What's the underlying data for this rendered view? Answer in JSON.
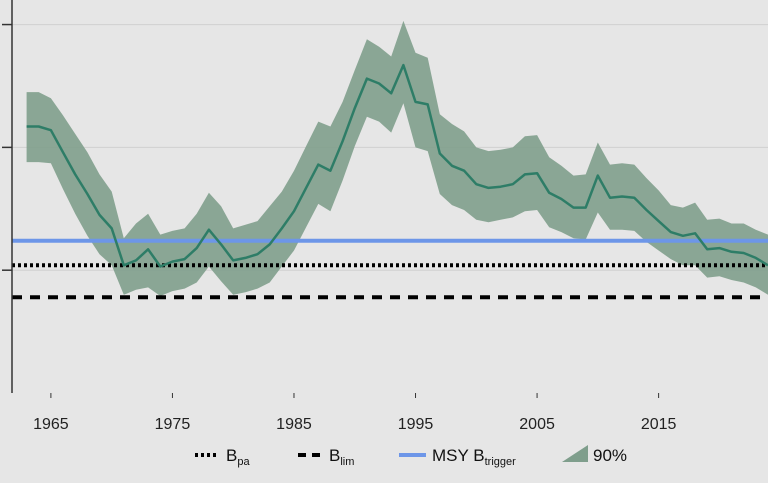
{
  "chart_data": {
    "type": "line",
    "x_ticks": [
      1965,
      1975,
      1985,
      1995,
      2005,
      2015
    ],
    "xlim": [
      1961.8,
      2024
    ],
    "ylim": [
      0,
      3.2
    ],
    "y_gridlines": [
      1,
      2,
      3
    ],
    "series": [
      {
        "name": "median",
        "color": "#2e7d67",
        "x": [
          1963,
          1964,
          1965,
          1966,
          1967,
          1968,
          1969,
          1970,
          1971,
          1972,
          1973,
          1974,
          1975,
          1976,
          1977,
          1978,
          1979,
          1980,
          1981,
          1982,
          1983,
          1984,
          1985,
          1986,
          1987,
          1988,
          1989,
          1990,
          1991,
          1992,
          1993,
          1994,
          1995,
          1996,
          1997,
          1998,
          1999,
          2000,
          2001,
          2002,
          2003,
          2004,
          2005,
          2006,
          2007,
          2008,
          2009,
          2010,
          2011,
          2012,
          2013,
          2014,
          2015,
          2016,
          2017,
          2018,
          2019,
          2020,
          2021,
          2022,
          2023,
          2024
        ],
        "y": [
          2.17,
          2.17,
          2.14,
          1.96,
          1.78,
          1.62,
          1.45,
          1.34,
          1.04,
          1.08,
          1.17,
          1.03,
          1.07,
          1.09,
          1.18,
          1.33,
          1.21,
          1.08,
          1.1,
          1.13,
          1.21,
          1.34,
          1.48,
          1.67,
          1.86,
          1.81,
          2.05,
          2.32,
          2.56,
          2.52,
          2.44,
          2.67,
          2.37,
          2.35,
          1.95,
          1.85,
          1.81,
          1.7,
          1.67,
          1.68,
          1.7,
          1.78,
          1.79,
          1.63,
          1.58,
          1.51,
          1.51,
          1.77,
          1.59,
          1.6,
          1.59,
          1.49,
          1.4,
          1.31,
          1.28,
          1.3,
          1.17,
          1.18,
          1.15,
          1.14,
          1.1,
          1.04
        ]
      }
    ],
    "band": {
      "label": "90%",
      "color": "#7f9e8c",
      "lower": [
        1.88,
        1.88,
        1.87,
        1.66,
        1.46,
        1.28,
        1.13,
        1.04,
        0.8,
        0.84,
        0.86,
        0.79,
        0.83,
        0.85,
        0.9,
        1.03,
        0.91,
        0.8,
        0.82,
        0.85,
        0.9,
        1.03,
        1.16,
        1.35,
        1.54,
        1.48,
        1.73,
        2.01,
        2.25,
        2.21,
        2.12,
        2.36,
        2.0,
        1.97,
        1.62,
        1.53,
        1.49,
        1.41,
        1.39,
        1.41,
        1.43,
        1.48,
        1.49,
        1.35,
        1.31,
        1.26,
        1.25,
        1.47,
        1.33,
        1.33,
        1.32,
        1.23,
        1.16,
        1.09,
        1.04,
        1.04,
        0.94,
        0.95,
        0.92,
        0.9,
        0.86,
        0.8
      ],
      "upper": [
        2.45,
        2.45,
        2.4,
        2.26,
        2.11,
        1.96,
        1.78,
        1.64,
        1.26,
        1.38,
        1.46,
        1.29,
        1.32,
        1.34,
        1.46,
        1.63,
        1.52,
        1.34,
        1.37,
        1.4,
        1.52,
        1.64,
        1.81,
        2.01,
        2.21,
        2.17,
        2.37,
        2.63,
        2.88,
        2.82,
        2.74,
        3.03,
        2.77,
        2.73,
        2.27,
        2.19,
        2.13,
        2.0,
        1.97,
        1.98,
        2.0,
        2.09,
        2.1,
        1.92,
        1.85,
        1.77,
        1.78,
        2.04,
        1.86,
        1.87,
        1.86,
        1.75,
        1.65,
        1.53,
        1.51,
        1.55,
        1.41,
        1.42,
        1.38,
        1.38,
        1.33,
        1.29
      ]
    },
    "reference_lines": [
      {
        "name": "B_pa",
        "y": 1.04,
        "style": "dotted",
        "color": "#000000"
      },
      {
        "name": "B_lim",
        "y": 0.78,
        "style": "dashed",
        "color": "#000000"
      },
      {
        "name": "MSY B_trigger",
        "y": 1.24,
        "style": "solid",
        "color": "#6d96e8"
      }
    ],
    "grid": true
  },
  "legend": {
    "bpa": {
      "main": "B",
      "sub": "pa"
    },
    "blim": {
      "main": "B",
      "sub": "lim"
    },
    "msy": {
      "main": "MSY B",
      "sub": "trigger"
    },
    "band": "90%"
  },
  "colors": {
    "background": "#e6e6e6",
    "grid": "#d0d0d0",
    "axis": "#333333"
  }
}
